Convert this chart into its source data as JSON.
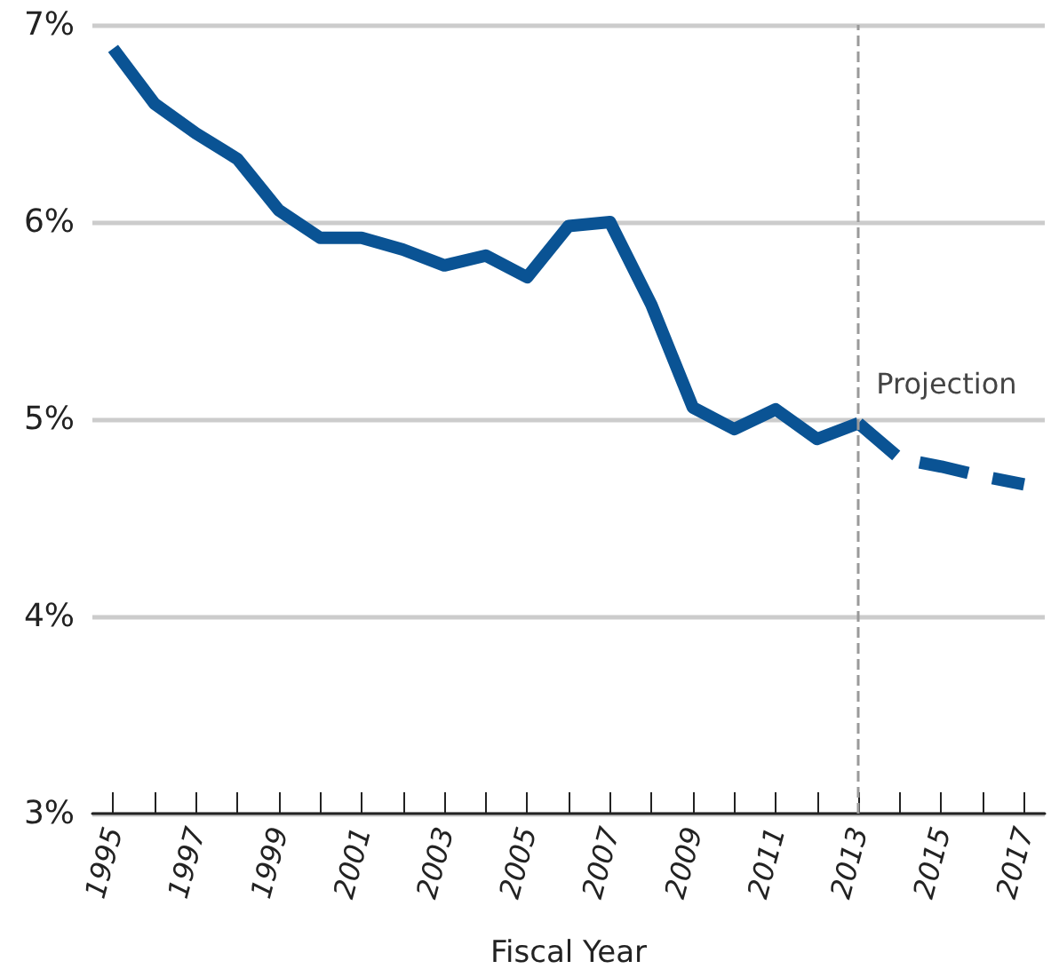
{
  "chart_data": {
    "type": "line",
    "xlabel": "Fiscal Year",
    "x": [
      1995,
      1996,
      1997,
      1998,
      1999,
      2000,
      2001,
      2002,
      2003,
      2004,
      2005,
      2006,
      2007,
      2008,
      2009,
      2010,
      2011,
      2012,
      2013
    ],
    "series": [
      {
        "color": "#0a5394",
        "line_style": "solid",
        "values": [
          6.88,
          6.6,
          6.45,
          6.32,
          6.06,
          5.92,
          5.92,
          5.86,
          5.78,
          5.83,
          5.72,
          5.98,
          6.0,
          5.58,
          5.06,
          4.95,
          5.05,
          4.9,
          4.98
        ]
      },
      {
        "color": "#0a5394",
        "line_style": "dashed",
        "x": [
          2013,
          2014,
          2015,
          2016,
          2017
        ],
        "values": [
          4.98,
          4.8,
          4.76,
          4.71,
          4.67
        ]
      }
    ],
    "xlim": [
      1994.5,
      2017.5
    ],
    "xticks": [
      1995,
      {
        "value": 1996,
        "label": null
      },
      1997,
      {
        "value": 1998,
        "label": null
      },
      1999,
      {
        "value": 2000,
        "label": null
      },
      2001,
      {
        "value": 2002,
        "label": null
      },
      2003,
      {
        "value": 2004,
        "label": null
      },
      2005,
      {
        "value": 2006,
        "label": null
      },
      2007,
      {
        "value": 2008,
        "label": null
      },
      2009,
      {
        "value": 2010,
        "label": null
      },
      2011,
      {
        "value": 2012,
        "label": null
      },
      2013,
      {
        "value": 2014,
        "label": null
      },
      2015,
      {
        "value": 2016,
        "label": null
      },
      2017
    ],
    "ylim": [
      3,
      7
    ],
    "yticks": [
      {
        "value": 3,
        "label": "3%"
      },
      {
        "value": 4,
        "label": "4%"
      },
      {
        "value": 5,
        "label": "5%"
      },
      {
        "value": 6,
        "label": "6%"
      },
      {
        "value": 7,
        "label": "7%"
      }
    ],
    "grid": "y",
    "marker": "none",
    "ref_lines": [
      {
        "axis": "x",
        "value": 2013,
        "label": "Projection",
        "color": "#9a9a9a",
        "line_style": "dashed"
      }
    ]
  }
}
